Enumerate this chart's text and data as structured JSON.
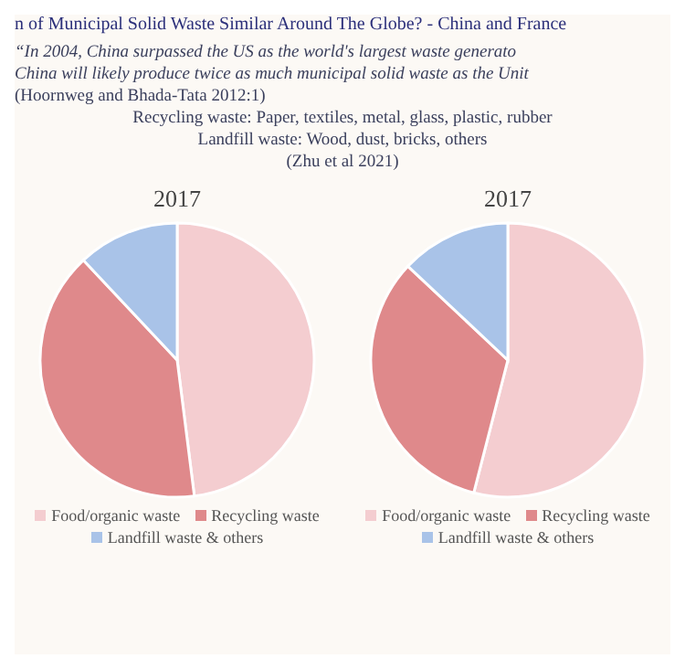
{
  "chart_data": [
    {
      "type": "other",
      "title": "n of Municipal Solid Waste Similar Around The Globe? - China and France",
      "annotations": [
        "“In 2004, China surpassed the US as the world's largest waste generato",
        "China will likely produce twice as much municipal solid waste as the Unit",
        "(Hoornweg and Bhada-Tata 2012:1)",
        "Recycling waste: Paper, textiles, metal, glass, plastic, rubber",
        "Landfill waste: Wood, dust, bricks, others",
        "(Zhu et al 2021)"
      ]
    },
    {
      "type": "pie",
      "title": "2017",
      "categories": [
        "Food/organic waste",
        "Recycling waste",
        "Landfill waste & others"
      ],
      "values": [
        48,
        40,
        12
      ],
      "colors": [
        "#f4cdd0",
        "#df898b",
        "#a9c3e8"
      ],
      "legend": "bottom"
    },
    {
      "type": "pie",
      "title": "2017",
      "categories": [
        "Food/organic waste",
        "Recycling waste",
        "Landfill waste & others"
      ],
      "values": [
        54,
        33,
        13
      ],
      "colors": [
        "#f4cdd0",
        "#df898b",
        "#a9c3e8"
      ],
      "legend": "bottom"
    }
  ]
}
